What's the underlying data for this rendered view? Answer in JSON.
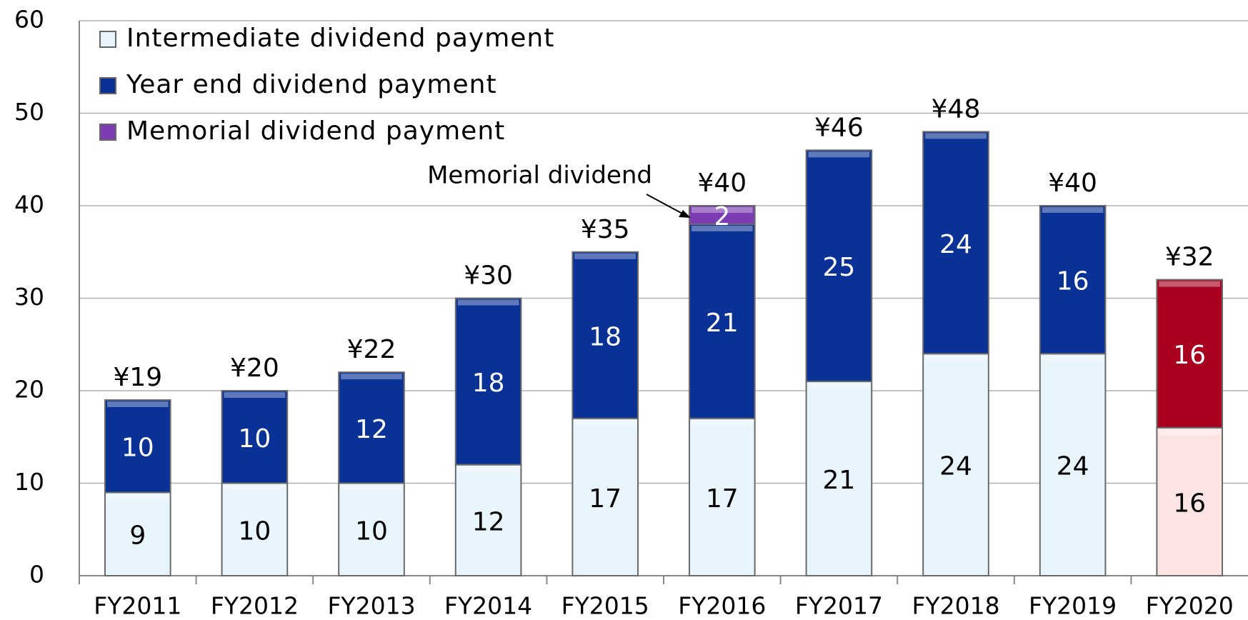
{
  "chart_data": {
    "type": "stacked_bar",
    "categories": [
      "FY2011",
      "FY2012",
      "FY2013",
      "FY2014",
      "FY2015",
      "FY2016",
      "FY2017",
      "FY2018",
      "FY2019",
      "FY2020"
    ],
    "series": [
      {
        "name": "Intermediate dividend payment",
        "color": [
          "#e8f5fc",
          "#e8f5fc",
          "#e8f5fc",
          "#e8f5fc",
          "#e8f5fc",
          "#e8f5fc",
          "#e8f5fc",
          "#e8f5fc",
          "#e8f5fc",
          "#fce4e4"
        ],
        "values": [
          9,
          10,
          10,
          12,
          17,
          17,
          21,
          24,
          24,
          16
        ]
      },
      {
        "name": "Year end dividend payment",
        "color": [
          "#0a3296",
          "#0a3296",
          "#0a3296",
          "#0a3296",
          "#0a3296",
          "#0a3296",
          "#0a3296",
          "#0a3296",
          "#0a3296",
          "#a8001e"
        ],
        "values": [
          10,
          10,
          12,
          18,
          18,
          21,
          25,
          24,
          16,
          16
        ]
      },
      {
        "name": "Memorial dividend payment",
        "color": [
          "#7d3cb4",
          "#7d3cb4",
          "#7d3cb4",
          "#7d3cb4",
          "#7d3cb4",
          "#7d3cb4",
          "#7d3cb4",
          "#7d3cb4",
          "#7d3cb4",
          "#7d3cb4"
        ],
        "values": [
          null,
          null,
          null,
          null,
          null,
          2,
          null,
          null,
          null,
          null
        ]
      }
    ],
    "total_labels": [
      "¥19",
      "¥20",
      "¥22",
      "¥30",
      "¥35",
      "¥40",
      "¥46",
      "¥48",
      "¥40",
      "¥32"
    ],
    "annotation": "Memorial dividend",
    "ylim": [
      0,
      60
    ],
    "yticks": [
      0,
      10,
      20,
      30,
      40,
      50,
      60
    ],
    "grid": true,
    "legend": "upper left"
  }
}
